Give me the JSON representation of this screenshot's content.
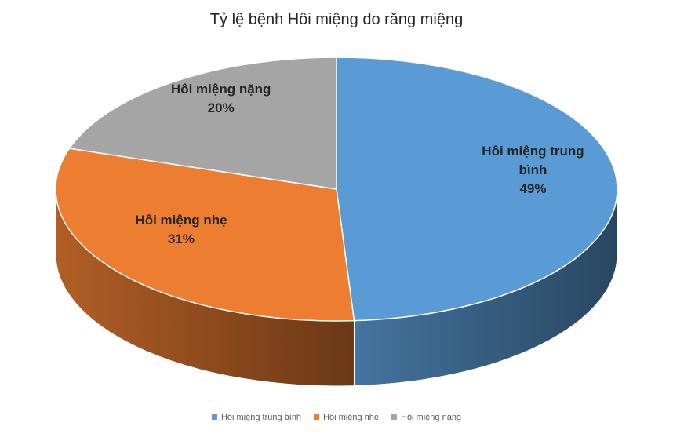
{
  "chart_data": {
    "type": "pie",
    "title": "Tỷ lệ bệnh Hôi miệng do răng miệng",
    "categories": [
      "Hôi miệng trung bình",
      "Hôi miệng nhẹ",
      "Hôi miệng nặng"
    ],
    "values": [
      49,
      31,
      20
    ],
    "value_labels": [
      "49%",
      "31%",
      "20%"
    ],
    "colors": [
      "#5b9bd5",
      "#ed7d31",
      "#a5a5a5"
    ],
    "legend": "bottom"
  }
}
